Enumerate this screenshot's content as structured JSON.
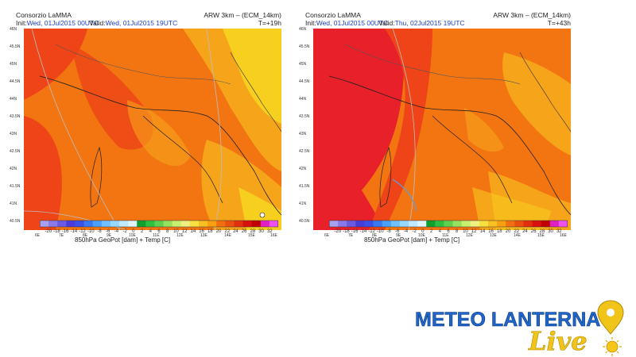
{
  "panels": [
    {
      "org": "Consorzio LaMMA",
      "model": "ARW 3km – (ECM_14km)",
      "init_label": "Init:",
      "init_value": "Wed, 01Jul2015 00UTC",
      "valid_label": "Valid:",
      "valid_value": "Wed, 01Jul2015 19UTC",
      "step": "T=+19h"
    },
    {
      "org": "Consorzio LaMMA",
      "model": "ARW 3km – (ECM_14km)",
      "init_label": "Init:",
      "init_value": "Wed, 01Jul2015 00UTC",
      "valid_label": "Valid:",
      "valid_value": "Thu, 02Jul2015 19UTC",
      "step": "T=+43h"
    }
  ],
  "lat_labels": [
    "46N",
    "45.5N",
    "45N",
    "44.5N",
    "44N",
    "43.5N",
    "43N",
    "42.5N",
    "42N",
    "41.5N",
    "41N",
    "40.5N"
  ],
  "lon_labels": [
    "6E",
    "7E",
    "8E",
    "9E",
    "10E",
    "11E",
    "12E",
    "13E",
    "14E",
    "15E",
    "16E"
  ],
  "colorbar": {
    "numbers": [
      "-20",
      "-18",
      "-16",
      "-14",
      "-12",
      "-10",
      "-8",
      "-6",
      "-4",
      "-2",
      "0",
      "2",
      "4",
      "6",
      "8",
      "10",
      "12",
      "14",
      "16",
      "18",
      "20",
      "22",
      "24",
      "26",
      "28",
      "30",
      "32"
    ],
    "colors": [
      "#a8a0f0",
      "#8a7ae8",
      "#6a5ae0",
      "#4a3cd8",
      "#3a50e8",
      "#3a78f0",
      "#4aa0f8",
      "#70c0ff",
      "#98d8ff",
      "#c0e8ff",
      "#e0f6ff",
      "#10a030",
      "#30c040",
      "#60d050",
      "#98e060",
      "#c8f070",
      "#f0f080",
      "#f8e040",
      "#f8c020",
      "#f8a010",
      "#f07010",
      "#e85010",
      "#e03010",
      "#d81010",
      "#c00000",
      "#e020c0",
      "#f050f0"
    ],
    "caption": "850hPa GeoPot [dam] + Temp [C]"
  },
  "colors": {
    "deep_red": "#e8202a",
    "red_orange": "#ee4418",
    "orange": "#f27512",
    "amber": "#f6a41a",
    "yellow": "#f7cf1f",
    "sea_green": "#58a848",
    "light_gray": "#c9c9c9"
  },
  "logo": {
    "main": "METEO LANTERNA",
    "script": "Live"
  }
}
